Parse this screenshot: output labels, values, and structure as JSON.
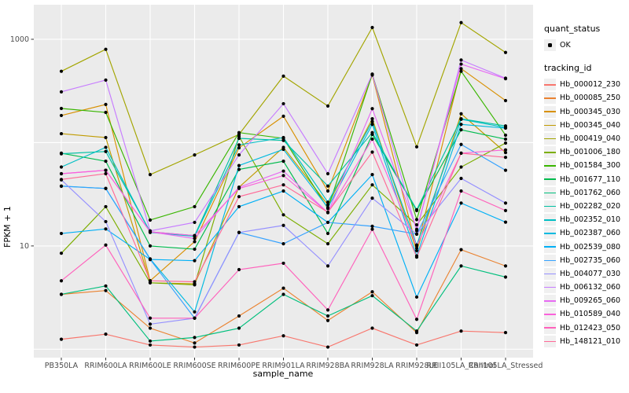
{
  "axes": {
    "x_title": "sample_name",
    "y_title": "FPKM + 1"
  },
  "legend": {
    "quant_status_title": "quant_status",
    "ok_label": "OK",
    "tracking_id_title": "tracking_id"
  },
  "colors": {
    "panel_bg": "#EBEBEB",
    "grid": "#FFFFFF",
    "tick": "#333333",
    "tick_label": "#4D4D4D",
    "point": "#000000",
    "legend_key_bg": "#F0F0F0"
  },
  "chart_data": {
    "type": "line",
    "title": "",
    "xlabel": "sample_name",
    "ylabel": "FPKM + 1",
    "y_scale": "log10",
    "ylim": [
      0.83,
      2160
    ],
    "grid": "major-decades",
    "grid_major_values": [
      1,
      10,
      100,
      1000
    ],
    "y_ticks": [
      1000,
      10
    ],
    "y_tick_labels": [
      "1000",
      "10"
    ],
    "legend_position": "right",
    "quant_status": "OK",
    "categories": [
      "PB350LA",
      "RRIM600LA",
      "RRIM600LE",
      "RRIM600SE",
      "RRIM600PE",
      "RRIM901LA",
      "RRIM928BA",
      "RRIM928LA",
      "RRIM928LE",
      "RRII105LA_Control",
      "RRII105LA_Stressed"
    ],
    "series": [
      {
        "tracking_id": "Hb_000012_230",
        "color": "#F8766D",
        "values": [
          1.25,
          1.4,
          1.1,
          1.05,
          1.1,
          1.35,
          1.05,
          1.6,
          1.1,
          1.5,
          1.45
        ]
      },
      {
        "tracking_id": "Hb_000085_250",
        "color": "#EA8331",
        "values": [
          3.4,
          3.7,
          1.6,
          1.15,
          2.1,
          3.9,
          1.9,
          3.6,
          1.45,
          9.2,
          6.4
        ]
      },
      {
        "tracking_id": "Hb_000345_030",
        "color": "#D89000",
        "values": [
          183,
          234,
          4.6,
          11,
          89,
          180,
          34,
          450,
          9.5,
          520,
          255
        ]
      },
      {
        "tracking_id": "Hb_000345_040",
        "color": "#C09B00",
        "values": [
          122,
          112,
          4.4,
          4.3,
          37,
          90,
          25,
          170,
          9,
          190,
          80
        ]
      },
      {
        "tracking_id": "Hb_000419_040",
        "color": "#A3A500",
        "values": [
          490,
          800,
          49,
          76,
          120,
          440,
          226,
          1300,
          91,
          1450,
          745
        ]
      },
      {
        "tracking_id": "Hb_001006_180",
        "color": "#7CAE00",
        "values": [
          8.5,
          24,
          4.4,
          4.2,
          115,
          20,
          10.5,
          39,
          16,
          58,
          99
        ]
      },
      {
        "tracking_id": "Hb_001584_300",
        "color": "#39B600",
        "values": [
          214,
          196,
          17.8,
          24,
          125,
          110,
          23,
          460,
          18,
          490,
          118
        ]
      },
      {
        "tracking_id": "Hb_001677_110",
        "color": "#00BB4E",
        "values": [
          79,
          66,
          10,
          9.3,
          55,
          66,
          13.2,
          120,
          22,
          133,
          108
        ]
      },
      {
        "tracking_id": "Hb_001762_060",
        "color": "#00BF7D",
        "values": [
          3.4,
          4.1,
          1.2,
          1.3,
          1.6,
          3.4,
          2.1,
          3.3,
          1.5,
          6.4,
          5
        ]
      },
      {
        "tracking_id": "Hb_002282_020",
        "color": "#00C1A3",
        "values": [
          78,
          82,
          13.7,
          12.6,
          110,
          105,
          38,
          125,
          22.4,
          170,
          145
        ]
      },
      {
        "tracking_id": "Hb_002352_010",
        "color": "#00BFC4",
        "values": [
          58,
          90,
          13.5,
          12.4,
          95,
          112,
          26.5,
          160,
          10.2,
          168,
          140
        ]
      },
      {
        "tracking_id": "Hb_002387_060",
        "color": "#00BAE0",
        "values": [
          38,
          36,
          7.5,
          2.3,
          60,
          86,
          23.5,
          150,
          8,
          150,
          138
        ]
      },
      {
        "tracking_id": "Hb_002539_080",
        "color": "#00B0F6",
        "values": [
          13.2,
          14.6,
          7.4,
          7.2,
          24,
          34,
          16.9,
          49,
          3.2,
          26,
          17
        ]
      },
      {
        "tracking_id": "Hb_002735_060",
        "color": "#35A2FF",
        "values": [
          37.8,
          36,
          7.4,
          2,
          13.5,
          10.5,
          16.9,
          15.5,
          13,
          96,
          54
        ]
      },
      {
        "tracking_id": "Hb_004077_030",
        "color": "#9590FF",
        "values": [
          43.6,
          17.2,
          1.75,
          2,
          13.5,
          15.8,
          6.4,
          29,
          13,
          45,
          26
        ]
      },
      {
        "tracking_id": "Hb_006132_060",
        "color": "#C77CFF",
        "values": [
          310,
          403,
          14,
          16.9,
          76,
          238,
          50,
          460,
          14,
          630,
          420
        ]
      },
      {
        "tracking_id": "Hb_009265_060",
        "color": "#E76BF3",
        "values": [
          50,
          54,
          13.7,
          11.8,
          37,
          53,
          21,
          213,
          14.5,
          575,
          415
        ]
      },
      {
        "tracking_id": "Hb_010589_040",
        "color": "#FA62DB",
        "values": [
          50,
          54,
          13.7,
          12.6,
          36,
          48,
          21,
          108,
          10,
          79,
          85
        ]
      },
      {
        "tracking_id": "Hb_012423_050",
        "color": "#FF62BC",
        "values": [
          4.6,
          10.2,
          2,
          2,
          5.9,
          6.8,
          2.4,
          14.5,
          1.95,
          34,
          22
        ]
      },
      {
        "tracking_id": "Hb_148121_010",
        "color": "#FF6A98",
        "values": [
          44,
          50,
          4.6,
          4.5,
          30,
          39,
          21.2,
          81,
          7.8,
          79,
          72
        ]
      }
    ]
  }
}
